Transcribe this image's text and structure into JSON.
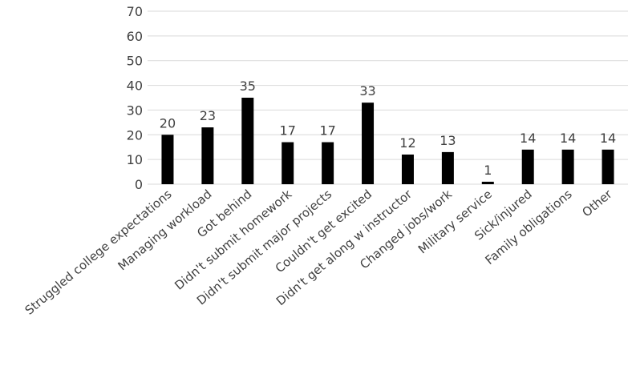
{
  "chart_data": {
    "type": "bar",
    "title": "",
    "xlabel": "",
    "ylabel": "",
    "categories": [
      "Struggled college expectations",
      "Managing workload",
      "Got behind",
      "Didn't submit homework",
      "Didn't submit major projects",
      "Couldn't get excited",
      "Didn't get along w instructor",
      "Changed jobs/work",
      "Military service",
      "Sick/injured",
      "Family obligations",
      "Other"
    ],
    "values": [
      20,
      23,
      35,
      17,
      17,
      33,
      12,
      13,
      1,
      14,
      14,
      14
    ],
    "ylim": [
      0,
      70
    ],
    "yticks": [
      0,
      10,
      20,
      30,
      40,
      50,
      60,
      70
    ],
    "grid": true,
    "legend": "none",
    "colors": {
      "bar": "#000000",
      "grid": "#d9d9d9",
      "text": "#404040"
    }
  }
}
